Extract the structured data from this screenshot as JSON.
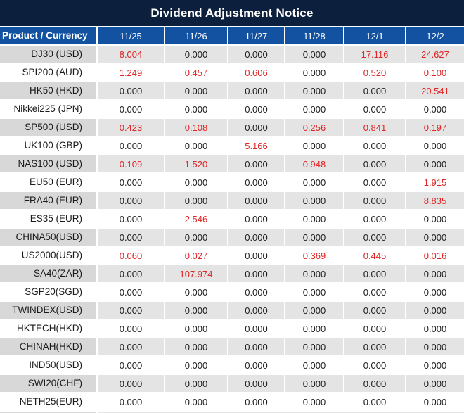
{
  "chart_data": {
    "type": "table",
    "title": "Dividend Adjustment Notice",
    "columns": [
      "Product / Currency",
      "11/25",
      "11/26",
      "11/27",
      "11/28",
      "12/1",
      "12/2"
    ],
    "rows": [
      {
        "product": "DJ30 (USD)",
        "values": [
          "8.004",
          "0.000",
          "0.000",
          "0.000",
          "17.116",
          "24.627"
        ]
      },
      {
        "product": "SPI200 (AUD)",
        "values": [
          "1.249",
          "0.457",
          "0.606",
          "0.000",
          "0.520",
          "0.100"
        ]
      },
      {
        "product": "HK50 (HKD)",
        "values": [
          "0.000",
          "0.000",
          "0.000",
          "0.000",
          "0.000",
          "20.541"
        ]
      },
      {
        "product": "Nikkei225 (JPN)",
        "values": [
          "0.000",
          "0.000",
          "0.000",
          "0.000",
          "0.000",
          "0.000"
        ]
      },
      {
        "product": "SP500 (USD)",
        "values": [
          "0.423",
          "0.108",
          "0.000",
          "0.256",
          "0.841",
          "0.197"
        ]
      },
      {
        "product": "UK100 (GBP)",
        "values": [
          "0.000",
          "0.000",
          "5.166",
          "0.000",
          "0.000",
          "0.000"
        ]
      },
      {
        "product": "NAS100 (USD)",
        "values": [
          "0.109",
          "1.520",
          "0.000",
          "0.948",
          "0.000",
          "0.000"
        ]
      },
      {
        "product": "EU50 (EUR)",
        "values": [
          "0.000",
          "0.000",
          "0.000",
          "0.000",
          "0.000",
          "1.915"
        ]
      },
      {
        "product": "FRA40 (EUR)",
        "values": [
          "0.000",
          "0.000",
          "0.000",
          "0.000",
          "0.000",
          "8.835"
        ]
      },
      {
        "product": "ES35 (EUR)",
        "values": [
          "0.000",
          "2.546",
          "0.000",
          "0.000",
          "0.000",
          "0.000"
        ]
      },
      {
        "product": "CHINA50(USD)",
        "values": [
          "0.000",
          "0.000",
          "0.000",
          "0.000",
          "0.000",
          "0.000"
        ]
      },
      {
        "product": "US2000(USD)",
        "values": [
          "0.060",
          "0.027",
          "0.000",
          "0.369",
          "0.445",
          "0.016"
        ]
      },
      {
        "product": "SA40(ZAR)",
        "values": [
          "0.000",
          "107.974",
          "0.000",
          "0.000",
          "0.000",
          "0.000"
        ]
      },
      {
        "product": "SGP20(SGD)",
        "values": [
          "0.000",
          "0.000",
          "0.000",
          "0.000",
          "0.000",
          "0.000"
        ]
      },
      {
        "product": "TWINDEX(USD)",
        "values": [
          "0.000",
          "0.000",
          "0.000",
          "0.000",
          "0.000",
          "0.000"
        ]
      },
      {
        "product": "HKTECH(HKD)",
        "values": [
          "0.000",
          "0.000",
          "0.000",
          "0.000",
          "0.000",
          "0.000"
        ]
      },
      {
        "product": "CHINAH(HKD)",
        "values": [
          "0.000",
          "0.000",
          "0.000",
          "0.000",
          "0.000",
          "0.000"
        ]
      },
      {
        "product": "IND50(USD)",
        "values": [
          "0.000",
          "0.000",
          "0.000",
          "0.000",
          "0.000",
          "0.000"
        ]
      },
      {
        "product": "SWI20(CHF)",
        "values": [
          "0.000",
          "0.000",
          "0.000",
          "0.000",
          "0.000",
          "0.000"
        ]
      },
      {
        "product": "NETH25(EUR)",
        "values": [
          "0.000",
          "0.000",
          "0.000",
          "0.000",
          "0.000",
          "0.000"
        ]
      }
    ],
    "layout": {
      "row_striping": "even rows gray, odd rows white",
      "nonzero_values_highlighted": true,
      "grid_lines": "white"
    }
  },
  "colors": {
    "title_bg": "#0c1f3c",
    "header_bg": "#1252a0",
    "header_text": "#ffffff",
    "label_gray": "#d8d8d8",
    "cell_gray": "#e5e4e4",
    "row_white": "#ffffff",
    "value_zero": "#1c1c1c",
    "value_red": "#e02525",
    "grid_line": "#ffffff"
  }
}
